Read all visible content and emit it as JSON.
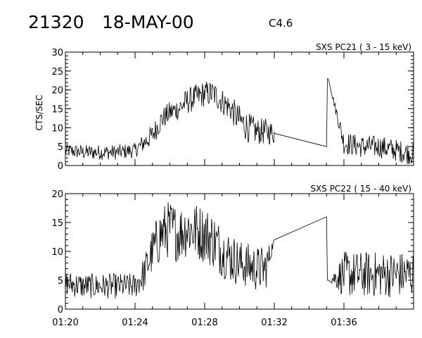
{
  "header": {
    "event_number": "21320",
    "date": "18-MAY-00",
    "flare_class": "C4.6"
  },
  "chart_data": [
    {
      "type": "line",
      "title": "SXS PC21  (  3 - 15 keV)",
      "ylabel": "CTS/SEC",
      "xlabel": "",
      "xlim": [
        "01:20",
        "01:40"
      ],
      "ylim": [
        0,
        30
      ],
      "yticks": [
        0,
        5,
        10,
        15,
        20,
        25,
        30
      ],
      "xticks": [
        "01:20",
        "01:24",
        "01:28",
        "01:32",
        "01:36"
      ],
      "series": [
        {
          "x": [
            "01:20:00",
            "01:21:00",
            "01:22:00",
            "01:23:00",
            "01:24:00",
            "01:24:30",
            "01:25:00",
            "01:25:30",
            "01:26:00",
            "01:26:30",
            "01:27:00",
            "01:27:30",
            "01:28:00",
            "01:28:30",
            "01:29:00",
            "01:29:30",
            "01:30:00",
            "01:30:30",
            "01:31:00",
            "01:31:30",
            "01:32:00",
            "01:35:00",
            "01:35:06",
            "01:36:00",
            "01:37:00",
            "01:38:00",
            "01:39:00",
            "01:40:00"
          ],
          "y": [
            4,
            3.5,
            3.5,
            3.5,
            4,
            6,
            8,
            12,
            14,
            15,
            17,
            18,
            19,
            19,
            17,
            15,
            12,
            10,
            9,
            9,
            8.5,
            5,
            23,
            6,
            5,
            5,
            4,
            3
          ],
          "noise": [
            1.8,
            2,
            2,
            2,
            2,
            2.5,
            3,
            3,
            3,
            3,
            3.5,
            3.5,
            3.5,
            3.5,
            3.5,
            3.5,
            4,
            4,
            3.5,
            3.5,
            3,
            0,
            0,
            3,
            3,
            3,
            3,
            3
          ]
        }
      ],
      "gaps": [
        [
          "01:32:00",
          "01:35:00"
        ]
      ]
    },
    {
      "type": "line",
      "title": "SXS PC22  ( 15 - 40 keV)",
      "ylabel": "",
      "xlabel": "",
      "xlim": [
        "01:20",
        "01:40"
      ],
      "ylim": [
        0,
        20
      ],
      "yticks": [
        0,
        5,
        10,
        15,
        20
      ],
      "xticks": [
        "01:20",
        "01:24",
        "01:28",
        "01:32",
        "01:36"
      ],
      "series": [
        {
          "x": [
            "01:20:00",
            "01:21:00",
            "01:22:00",
            "01:23:00",
            "01:24:00",
            "01:24:30",
            "01:25:00",
            "01:25:30",
            "01:26:00",
            "01:26:30",
            "01:27:00",
            "01:27:30",
            "01:28:00",
            "01:28:30",
            "01:29:00",
            "01:29:30",
            "01:30:00",
            "01:30:30",
            "01:31:00",
            "01:31:30",
            "01:32:00",
            "01:35:00",
            "01:35:06",
            "01:36:00",
            "01:37:00",
            "01:38:00",
            "01:39:00",
            "01:40:00"
          ],
          "y": [
            4.5,
            4,
            4,
            4,
            4,
            6,
            10,
            13,
            14,
            13,
            14,
            13.5,
            13,
            12,
            10,
            9,
            8,
            7.5,
            7,
            7,
            12,
            16,
            5,
            6,
            6,
            6,
            6,
            6
          ],
          "noise": [
            2.2,
            2.2,
            2.2,
            2.2,
            2.2,
            3,
            4,
            5,
            5,
            5,
            5,
            5,
            5,
            5,
            4.5,
            4.5,
            4,
            4,
            4,
            4,
            0,
            0,
            0,
            4,
            4,
            4,
            4,
            4
          ]
        }
      ],
      "gaps": [
        [
          "01:32:00",
          "01:35:00"
        ]
      ]
    }
  ]
}
